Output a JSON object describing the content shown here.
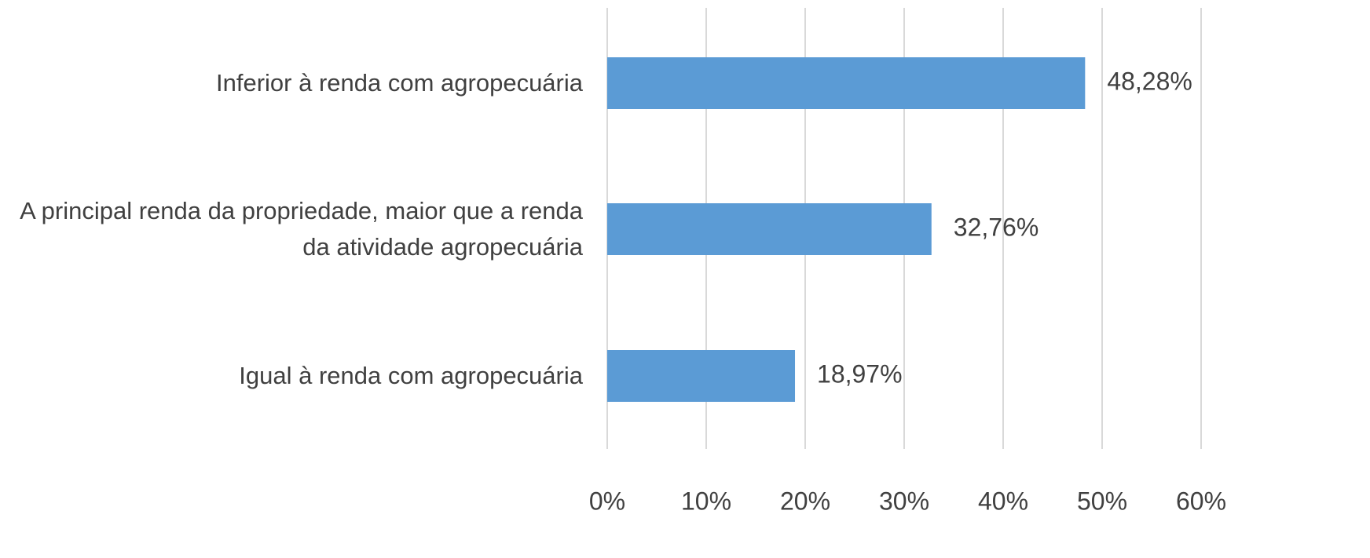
{
  "chart_data": {
    "type": "bar",
    "orientation": "horizontal",
    "categories": [
      "Inferior à renda com agropecuária",
      "A principal renda da propriedade, maior que a renda da atividade agropecuária",
      "Igual à renda com agropecuária"
    ],
    "values": [
      48.28,
      32.76,
      18.97
    ],
    "value_labels": [
      "48,28%",
      "32,76%",
      "18,97%"
    ],
    "color": "#5b9bd5",
    "xlim": [
      0,
      60
    ],
    "xticks": [
      {
        "value": 0,
        "label": "0%"
      },
      {
        "value": 10,
        "label": "10%"
      },
      {
        "value": 20,
        "label": "20%"
      },
      {
        "value": 30,
        "label": "30%"
      },
      {
        "value": 40,
        "label": "40%"
      },
      {
        "value": 50,
        "label": "50%"
      },
      {
        "value": 60,
        "label": "60%"
      }
    ],
    "grid": true
  }
}
